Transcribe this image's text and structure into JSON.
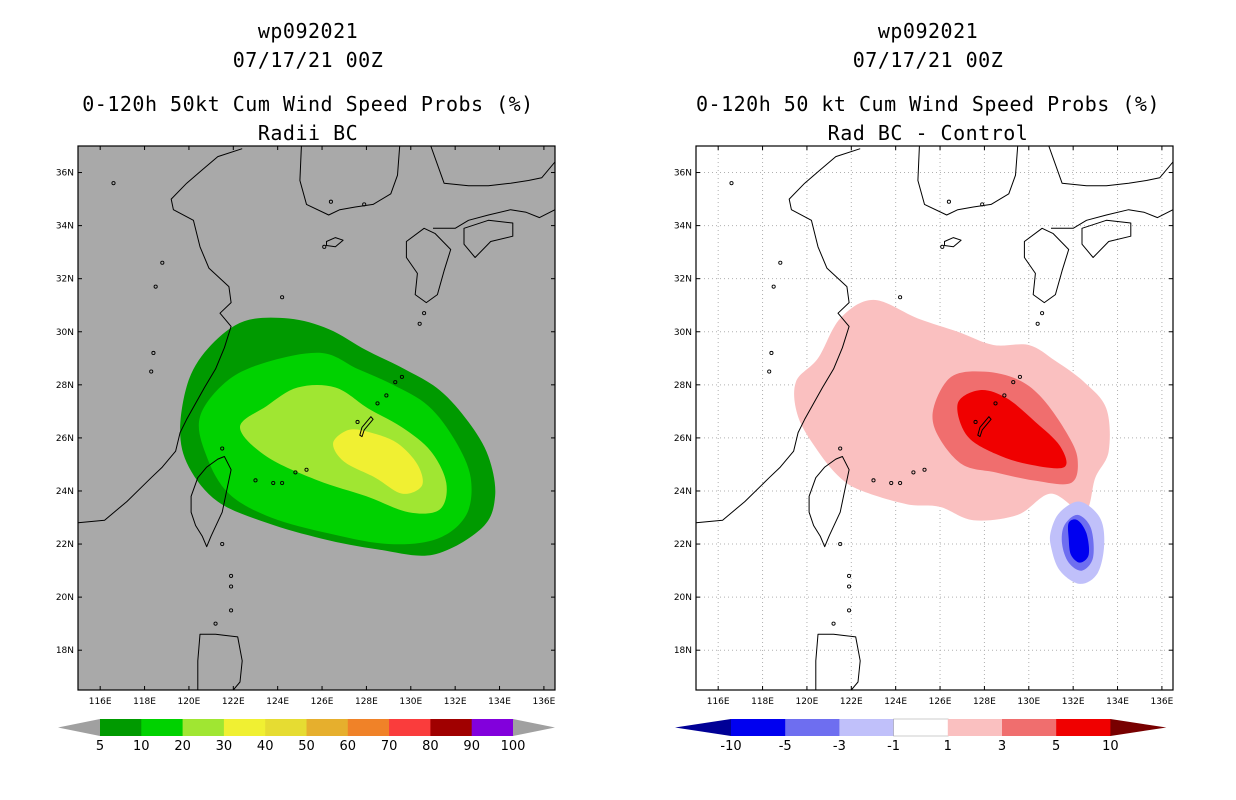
{
  "left_panel": {
    "title_lines": [
      "wp092021",
      "07/17/21 00Z",
      "0-120h 50kt Cum Wind Speed Probs (%)",
      "Radii BC"
    ],
    "colorbar": {
      "labels": [
        "5",
        "10",
        "20",
        "30",
        "40",
        "50",
        "60",
        "70",
        "80",
        "90",
        "100"
      ],
      "colors": [
        "#009a00",
        "#00d200",
        "#a0e632",
        "#f0f032",
        "#e6dc32",
        "#e6af2d",
        "#f08228",
        "#fa3c3c",
        "#a00000",
        "#8200dc"
      ],
      "ends": [
        "#a0a0a0",
        "#a0a0a0"
      ]
    },
    "background_color": "#a9a9a9"
  },
  "right_panel": {
    "title_lines": [
      "wp092021",
      "07/17/21 00Z",
      "0-120h 50 kt Cum Wind Speed Probs (%)",
      "Rad BC - Control"
    ],
    "colorbar": {
      "labels": [
        "-10",
        "-5",
        "-3",
        "-1",
        "1",
        "3",
        "5",
        "10"
      ],
      "colors": [
        "#0000f0",
        "#6e6ef0",
        "#c0c0fa",
        "#ffffff",
        "#fac0c0",
        "#f06e6e",
        "#f00000"
      ],
      "ends": [
        "#000096",
        "#780000"
      ]
    },
    "background_color": "#ffffff"
  },
  "axes": {
    "x_labels": [
      "116E",
      "118E",
      "120E",
      "122E",
      "124E",
      "126E",
      "128E",
      "130E",
      "132E",
      "134E",
      "136E"
    ],
    "x_values": [
      116,
      118,
      120,
      122,
      124,
      126,
      128,
      130,
      132,
      134,
      136
    ],
    "y_labels": [
      "18N",
      "20N",
      "22N",
      "24N",
      "26N",
      "28N",
      "30N",
      "32N",
      "34N",
      "36N"
    ],
    "y_values": [
      18,
      20,
      22,
      24,
      26,
      28,
      30,
      32,
      34,
      36
    ],
    "lon_range": [
      115.0,
      136.5
    ],
    "lat_range": [
      16.5,
      37.0
    ]
  },
  "chart_data": [
    {
      "type": "heatmap",
      "title": "0-120h 50kt Cum Wind Speed Probs (%) - Radii BC",
      "subtitle": "wp092021 07/17/21 00Z",
      "units": "%",
      "levels": [
        5,
        10,
        20,
        30,
        40,
        50,
        60,
        70,
        80,
        90,
        100
      ],
      "contours": [
        {
          "level": 5,
          "polygon": [
            [
              120.0,
              28.2
            ],
            [
              121.0,
              29.5
            ],
            [
              122.5,
              30.4
            ],
            [
              124.5,
              30.5
            ],
            [
              126.3,
              30.1
            ],
            [
              128.0,
              29.3
            ],
            [
              129.7,
              28.6
            ],
            [
              131.3,
              27.8
            ],
            [
              132.6,
              26.6
            ],
            [
              133.5,
              25.3
            ],
            [
              133.8,
              23.8
            ],
            [
              133.2,
              22.6
            ],
            [
              131.0,
              21.6
            ],
            [
              128.5,
              21.8
            ],
            [
              126.0,
              22.2
            ],
            [
              123.5,
              22.8
            ],
            [
              121.3,
              23.6
            ],
            [
              120.0,
              24.9
            ],
            [
              119.6,
              26.3
            ]
          ]
        },
        {
          "level": 10,
          "polygon": [
            [
              120.5,
              26.8
            ],
            [
              121.8,
              28.2
            ],
            [
              123.7,
              28.9
            ],
            [
              126.0,
              29.2
            ],
            [
              127.6,
              28.6
            ],
            [
              129.2,
              28.0
            ],
            [
              130.8,
              27.2
            ],
            [
              132.0,
              25.9
            ],
            [
              132.7,
              24.5
            ],
            [
              132.5,
              23.1
            ],
            [
              131.2,
              22.2
            ],
            [
              129.0,
              22.0
            ],
            [
              126.3,
              22.4
            ],
            [
              123.7,
              23.0
            ],
            [
              121.8,
              23.9
            ],
            [
              120.8,
              25.3
            ]
          ]
        },
        {
          "level": 20,
          "polygon": [
            [
              122.3,
              26.4
            ],
            [
              123.5,
              27.2
            ],
            [
              124.9,
              27.9
            ],
            [
              126.6,
              27.9
            ],
            [
              128.1,
              27.1
            ],
            [
              129.6,
              26.4
            ],
            [
              130.9,
              25.5
            ],
            [
              131.6,
              24.3
            ],
            [
              131.3,
              23.3
            ],
            [
              129.9,
              23.2
            ],
            [
              128.0,
              23.8
            ],
            [
              125.8,
              24.4
            ],
            [
              123.5,
              25.3
            ]
          ]
        },
        {
          "level": 30,
          "polygon": [
            [
              126.5,
              25.8
            ],
            [
              127.2,
              26.3
            ],
            [
              128.2,
              26.2
            ],
            [
              129.4,
              25.8
            ],
            [
              130.3,
              25.0
            ],
            [
              130.5,
              24.2
            ],
            [
              129.6,
              23.9
            ],
            [
              128.4,
              24.5
            ],
            [
              127.0,
              25.1
            ]
          ]
        }
      ]
    },
    {
      "type": "heatmap",
      "title": "0-120h 50 kt Cum Wind Speed Probs (%) - Rad BC - Control",
      "subtitle": "wp092021 07/17/21 00Z",
      "units": "%",
      "levels": [
        -10,
        -5,
        -3,
        -1,
        1,
        3,
        5,
        10
      ],
      "positive_contours": [
        {
          "level": 1,
          "polygon": [
            [
              119.5,
              28.1
            ],
            [
              120.5,
              29.0
            ],
            [
              121.5,
              30.5
            ],
            [
              123.0,
              31.2
            ],
            [
              125.0,
              30.5
            ],
            [
              126.8,
              30.0
            ],
            [
              128.4,
              29.5
            ],
            [
              130.0,
              29.5
            ],
            [
              131.2,
              28.9
            ],
            [
              132.5,
              28.1
            ],
            [
              133.5,
              27.1
            ],
            [
              133.6,
              25.5
            ],
            [
              133.0,
              24.5
            ],
            [
              132.5,
              23.2
            ],
            [
              131.0,
              23.9
            ],
            [
              129.5,
              23.1
            ],
            [
              127.5,
              22.9
            ],
            [
              126.0,
              23.4
            ],
            [
              124.5,
              23.5
            ],
            [
              122.5,
              24.0
            ],
            [
              121.5,
              24.5
            ],
            [
              120.5,
              25.5
            ],
            [
              119.6,
              26.8
            ]
          ]
        },
        {
          "level": 3,
          "polygon": [
            [
              125.7,
              27.1
            ],
            [
              126.5,
              28.3
            ],
            [
              128.0,
              28.5
            ],
            [
              129.5,
              28.2
            ],
            [
              130.6,
              27.5
            ],
            [
              131.7,
              26.2
            ],
            [
              132.2,
              25.2
            ],
            [
              131.9,
              24.3
            ],
            [
              130.2,
              24.4
            ],
            [
              128.5,
              24.7
            ],
            [
              127.0,
              25.0
            ],
            [
              125.9,
              26.1
            ]
          ]
        },
        {
          "level": 5,
          "polygon": [
            [
              126.8,
              27.3
            ],
            [
              127.8,
              27.8
            ],
            [
              129.0,
              27.5
            ],
            [
              130.3,
              26.6
            ],
            [
              131.4,
              25.7
            ],
            [
              131.6,
              24.9
            ],
            [
              130.0,
              25.0
            ],
            [
              128.5,
              25.4
            ],
            [
              127.2,
              26.1
            ]
          ]
        }
      ],
      "negative_contours": [
        {
          "level": -1,
          "polygon": [
            [
              131.0,
              22.5
            ],
            [
              131.4,
              23.2
            ],
            [
              132.3,
              23.6
            ],
            [
              133.2,
              23.0
            ],
            [
              133.4,
              22.0
            ],
            [
              133.1,
              20.9
            ],
            [
              132.3,
              20.5
            ],
            [
              131.4,
              21.0
            ],
            [
              131.0,
              21.9
            ]
          ]
        },
        {
          "level": -3,
          "polygon": [
            [
              131.6,
              22.7
            ],
            [
              132.2,
              23.1
            ],
            [
              132.8,
              22.6
            ],
            [
              132.9,
              21.5
            ],
            [
              132.4,
              21.0
            ],
            [
              131.8,
              21.3
            ],
            [
              131.5,
              22.0
            ]
          ]
        },
        {
          "level": -5,
          "polygon": [
            [
              131.8,
              22.8
            ],
            [
              132.2,
              22.9
            ],
            [
              132.6,
              22.4
            ],
            [
              132.7,
              21.6
            ],
            [
              132.3,
              21.3
            ],
            [
              131.9,
              21.6
            ],
            [
              131.8,
              22.2
            ]
          ]
        }
      ]
    }
  ]
}
